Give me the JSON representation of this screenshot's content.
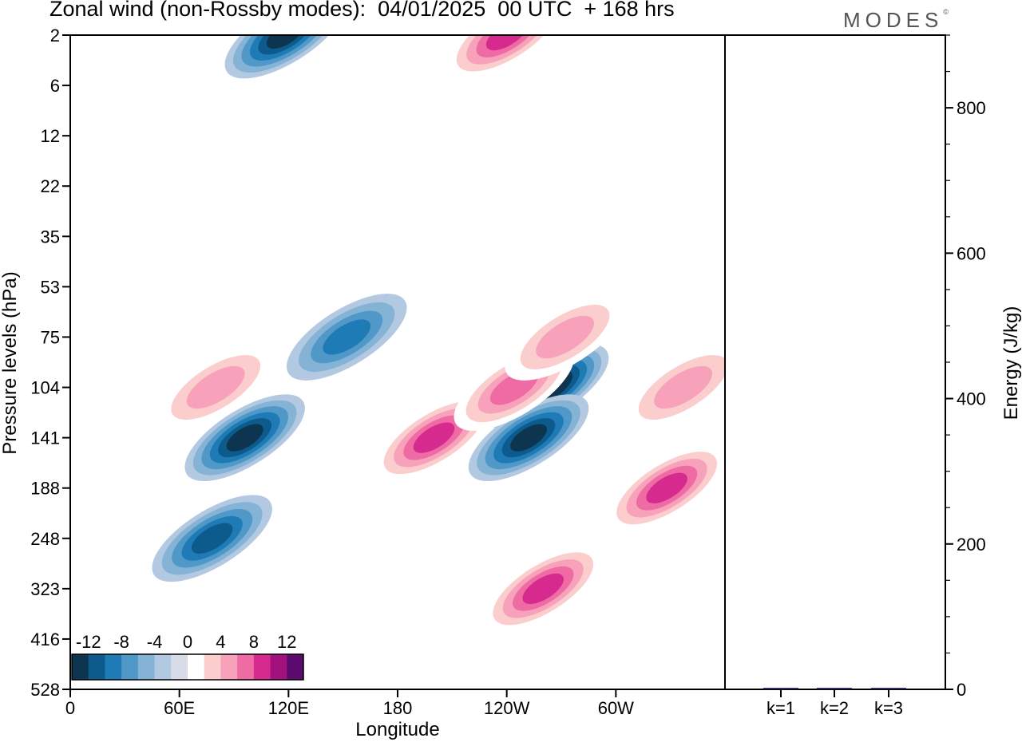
{
  "header": {
    "title": "Zonal wind (non-Rossby modes):  04/01/2025  00 UTC  + 168 hrs",
    "brand": "MODES",
    "brand_mark": "©"
  },
  "chart_data": [
    {
      "type": "heatmap",
      "title": "Zonal wind (non-Rossby modes):  04/01/2025  00 UTC  + 168 hrs",
      "xlabel": "Longitude",
      "ylabel": "Pressure levels (hPa)",
      "x_ticks": [
        "0",
        "60E",
        "120E",
        "180",
        "120W",
        "60W"
      ],
      "y_ticks": [
        "2",
        "6",
        "12",
        "22",
        "35",
        "53",
        "75",
        "104",
        "141",
        "188",
        "248",
        "323",
        "416",
        "528"
      ],
      "colorbar": {
        "tick_labels": [
          "-12",
          "-8",
          "-4",
          "0",
          "4",
          "8",
          "12"
        ],
        "levels": [
          -14,
          -12,
          -10,
          -8,
          -6,
          -4,
          -2,
          2,
          4,
          6,
          8,
          10,
          12,
          14
        ],
        "colors": [
          "#0d3550",
          "#0d5b8c",
          "#1f7bb5",
          "#4f98c8",
          "#85b3d6",
          "#b3c8e1",
          "#d8dce9",
          "#ffffff",
          "#fbcdcd",
          "#f7a1bb",
          "#ee6ba3",
          "#d72a8e",
          "#a3117f",
          "#5c0a6e"
        ]
      },
      "features": [
        {
          "lon": 96,
          "level": "141",
          "u": -13
        },
        {
          "lon": 78,
          "level": "248",
          "u": -10
        },
        {
          "lon": 152,
          "level": "75",
          "u": -8
        },
        {
          "lon": 118,
          "level": "2",
          "u": -12
        },
        {
          "lon": 200,
          "level": "141",
          "u": 11
        },
        {
          "lon": 263,
          "level": "104",
          "u": -14
        },
        {
          "lon": 252,
          "level": "141",
          "u": -12
        },
        {
          "lon": 244,
          "level": "104",
          "u": 9
        },
        {
          "lon": 260,
          "level": "323",
          "u": 10
        },
        {
          "lon": 328,
          "level": "188",
          "u": 10
        },
        {
          "lon": 337,
          "level": "104",
          "u": 7
        },
        {
          "lon": 240,
          "level": "2",
          "u": 11
        },
        {
          "lon": 272,
          "level": "75",
          "u": 7
        },
        {
          "lon": 80,
          "level": "104",
          "u": 6
        }
      ]
    },
    {
      "type": "bar",
      "ylabel": "Energy (J/kg)",
      "categories": [
        "k=1",
        "k=2",
        "k=3"
      ],
      "values": [
        2,
        2,
        2
      ],
      "ylim": [
        0,
        900
      ],
      "y_ticks": [
        "0",
        "200",
        "400",
        "600",
        "800"
      ]
    }
  ]
}
